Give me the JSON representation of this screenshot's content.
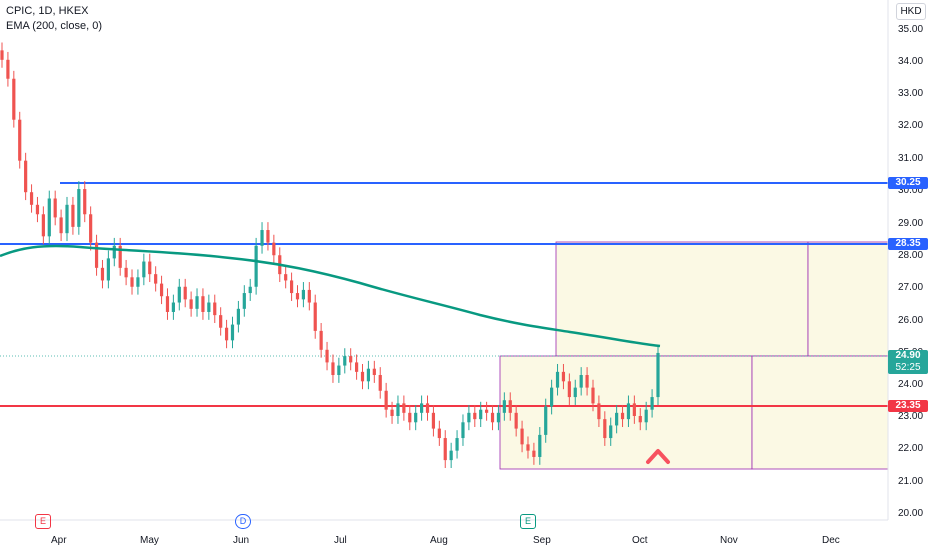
{
  "header": {
    "symbol_line": "CPIC, 1D, HKEX",
    "indicator_line": "EMA (200, close, 0)",
    "currency": "HKD"
  },
  "y_axis": {
    "ticks": [
      "35.00",
      "34.00",
      "33.00",
      "32.00",
      "31.00",
      "30.00",
      "29.00",
      "28.00",
      "27.00",
      "26.00",
      "25.00",
      "24.00",
      "23.00",
      "22.00",
      "21.00",
      "20.00"
    ]
  },
  "x_axis": {
    "ticks": [
      "Apr",
      "May",
      "Jun",
      "Jul",
      "Aug",
      "Sep",
      "Oct",
      "Nov",
      "Dec"
    ]
  },
  "price_tags": {
    "upper_resistance": "30.25",
    "mid_resistance": "28.35",
    "last_price": "24.90",
    "countdown": "52:25",
    "support": "23.35"
  },
  "events": {
    "earnings_1": "E",
    "dividend": "D",
    "earnings_2": "E"
  },
  "colors": {
    "up": "#26a69a",
    "down": "#ef5350",
    "ema": "#089981",
    "blue_line": "#2962ff",
    "red_line": "#f23645",
    "box": "#9c27b0",
    "box_fill": "#fbf9e4",
    "arrow": "#f7525f"
  },
  "chart_data": {
    "type": "candlestick",
    "title": "CPIC, 1D, HKEX",
    "ylim": [
      19.6,
      35.4
    ],
    "close_path": [
      [
        34.2,
        "0"
      ],
      [
        33.6,
        "0.5"
      ],
      [
        32.3,
        "1.5"
      ],
      [
        31.0,
        "2.5"
      ],
      [
        30.0,
        "3.5"
      ],
      [
        29.6,
        "4.5"
      ],
      [
        29.3,
        "5"
      ],
      [
        28.6,
        "5.5"
      ],
      [
        29.8,
        "6"
      ],
      [
        29.2,
        "7"
      ],
      [
        28.7,
        "7.5"
      ],
      [
        29.6,
        "8"
      ],
      [
        28.9,
        "8.5"
      ],
      [
        30.1,
        "9"
      ],
      [
        29.3,
        "9.5"
      ],
      [
        28.4,
        "10"
      ],
      [
        27.6,
        "10.5"
      ],
      [
        27.2,
        "11"
      ],
      [
        27.9,
        "11.5"
      ],
      [
        28.3,
        "12"
      ],
      [
        27.6,
        "12.5"
      ],
      [
        27.3,
        "13"
      ],
      [
        27.0,
        "13.5"
      ],
      [
        27.3,
        "14"
      ],
      [
        27.8,
        "14.5"
      ],
      [
        27.4,
        "15"
      ],
      [
        27.1,
        "15.5"
      ],
      [
        26.7,
        "16"
      ],
      [
        26.2,
        "17"
      ],
      [
        26.5,
        "17.5"
      ],
      [
        27.0,
        "18"
      ],
      [
        26.6,
        "18.5"
      ],
      [
        26.3,
        "19"
      ],
      [
        26.7,
        "19.5"
      ],
      [
        26.2,
        "20"
      ],
      [
        26.5,
        "21"
      ],
      [
        26.1,
        "21.5"
      ],
      [
        25.7,
        "22"
      ],
      [
        25.3,
        "22.5"
      ],
      [
        25.8,
        "23"
      ],
      [
        26.3,
        "23.5"
      ],
      [
        26.8,
        "24"
      ],
      [
        27.0,
        "25"
      ],
      [
        28.3,
        "26"
      ],
      [
        28.8,
        "26.5"
      ],
      [
        28.4,
        "27"
      ],
      [
        28.0,
        "27.5"
      ],
      [
        27.4,
        "28"
      ],
      [
        27.2,
        "28.5"
      ],
      [
        26.8,
        "29"
      ],
      [
        26.6,
        "30"
      ],
      [
        26.9,
        "30.5"
      ],
      [
        26.5,
        "31"
      ],
      [
        25.6,
        "32"
      ],
      [
        25.0,
        "32.5"
      ],
      [
        24.6,
        "33"
      ],
      [
        24.2,
        "34"
      ],
      [
        24.5,
        "34.5"
      ],
      [
        24.8,
        "35"
      ],
      [
        24.6,
        "35.5"
      ],
      [
        24.3,
        "36"
      ],
      [
        24.0,
        "37"
      ],
      [
        24.4,
        "37.5"
      ],
      [
        24.2,
        "38"
      ],
      [
        23.7,
        "38.5"
      ],
      [
        23.1,
        "39"
      ],
      [
        22.9,
        "40"
      ],
      [
        23.3,
        "40.5"
      ],
      [
        23.0,
        "41"
      ],
      [
        22.7,
        "42"
      ],
      [
        23.0,
        "42.5"
      ],
      [
        23.3,
        "43"
      ],
      [
        23.0,
        "43.5"
      ],
      [
        22.5,
        "44"
      ],
      [
        22.2,
        "45"
      ],
      [
        21.5,
        "45.5"
      ],
      [
        21.8,
        "46"
      ],
      [
        22.2,
        "47"
      ],
      [
        22.7,
        "47.5"
      ],
      [
        23.0,
        "48"
      ],
      [
        22.8,
        "49"
      ],
      [
        23.1,
        "49.5"
      ],
      [
        23.0,
        "50"
      ],
      [
        22.7,
        "51"
      ],
      [
        23.0,
        "51.5"
      ],
      [
        23.4,
        "52"
      ],
      [
        23.0,
        "53"
      ],
      [
        22.5,
        "53.5"
      ],
      [
        22.0,
        "54"
      ],
      [
        21.8,
        "55"
      ],
      [
        21.6,
        "56"
      ],
      [
        22.3,
        "57"
      ],
      [
        23.2,
        "57.5"
      ],
      [
        23.8,
        "58"
      ],
      [
        24.3,
        "58.5"
      ],
      [
        24.0,
        "59"
      ],
      [
        23.5,
        "60"
      ],
      [
        23.8,
        "61"
      ],
      [
        24.2,
        "61.5"
      ],
      [
        23.8,
        "62"
      ],
      [
        23.3,
        "63"
      ],
      [
        22.8,
        "64"
      ],
      [
        22.2,
        "64.5"
      ],
      [
        22.6,
        "65"
      ],
      [
        23.0,
        "66"
      ],
      [
        22.8,
        "67"
      ],
      [
        23.3,
        "68"
      ],
      [
        22.9,
        "69"
      ],
      [
        22.7,
        "70"
      ],
      [
        23.1,
        "71"
      ],
      [
        23.5,
        "71.5"
      ],
      [
        24.9,
        "72"
      ]
    ],
    "ema_200": "declining from ~28.3 to ~25.2",
    "horizontal_lines": [
      {
        "label": "30.25",
        "value": 30.25
      },
      {
        "label": "28.35",
        "value": 28.35
      },
      {
        "label": "23.35",
        "value": 23.35
      }
    ],
    "last_close": 24.9,
    "x_ticks": [
      "Apr",
      "May",
      "Jun",
      "Jul",
      "Aug",
      "Sep",
      "Oct",
      "Nov",
      "Dec"
    ]
  }
}
